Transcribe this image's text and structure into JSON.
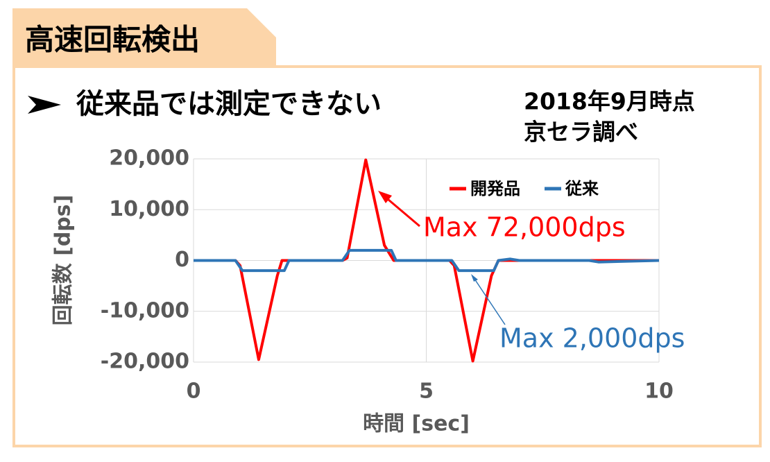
{
  "slide": {
    "tab_title": "高速回転検出",
    "heading": "従来品では測定できない",
    "note": [
      "2018年9月時点",
      "京セラ調べ"
    ]
  },
  "chart_data": {
    "type": "line",
    "xlabel": "時間 [sec]",
    "ylabel": "回転数 [dps]",
    "xlim": [
      0,
      10
    ],
    "xticks": [
      0,
      5,
      10
    ],
    "ylim": [
      -20000,
      20000
    ],
    "yticks": [
      {
        "value": -20000,
        "label": "-20,000"
      },
      {
        "value": -10000,
        "label": "-10,000"
      },
      0,
      {
        "value": 10000,
        "label": "10,000"
      },
      {
        "value": 20000,
        "label": "20,000"
      }
    ],
    "grid": true,
    "series": [
      {
        "name": "開発品",
        "color": "#ff0000",
        "x": [
          0,
          0.9,
          1.0,
          1.4,
          1.8,
          1.9,
          3.2,
          3.3,
          3.7,
          4.1,
          4.3,
          5.5,
          5.6,
          6.0,
          6.4,
          6.55,
          10
        ],
        "values": [
          0,
          0,
          -1000,
          -19500,
          -3000,
          0,
          0,
          500,
          19800,
          3000,
          0,
          0,
          -1000,
          -19800,
          -3000,
          0,
          0
        ]
      },
      {
        "name": "従来",
        "color": "#2e75b6",
        "x": [
          0,
          0.9,
          1.05,
          1.95,
          2.05,
          3.2,
          3.35,
          4.25,
          4.35,
          5.55,
          5.7,
          6.45,
          6.55,
          6.8,
          7.0,
          8.5,
          8.7,
          10
        ],
        "values": [
          0,
          0,
          -2000,
          -2000,
          0,
          0,
          2000,
          2000,
          0,
          0,
          -2000,
          -2000,
          0,
          300,
          0,
          0,
          -300,
          0
        ]
      }
    ],
    "annotations": [
      {
        "text": "Max 72,000dps",
        "color": "#ff0000"
      },
      {
        "text": "Max 2,000dps",
        "color": "#2e75b6"
      }
    ]
  }
}
